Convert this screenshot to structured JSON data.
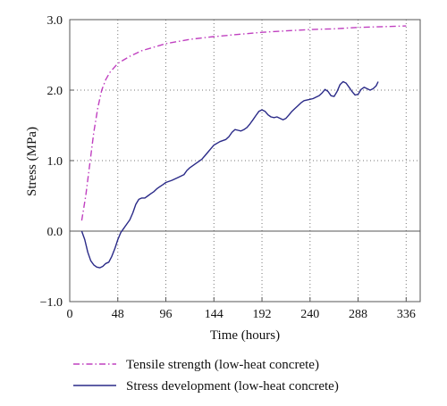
{
  "chart_data": {
    "type": "line",
    "xlabel": "Time (hours)",
    "ylabel": "Stress (MPa)",
    "xlim": [
      0,
      350
    ],
    "ylim": [
      -1.0,
      3.0
    ],
    "x_ticks": [
      0,
      48,
      96,
      144,
      192,
      240,
      288,
      336
    ],
    "x_tick_labels": [
      "0",
      "48",
      "96",
      "144",
      "192",
      "240",
      "288",
      "336"
    ],
    "y_ticks": [
      -1.0,
      0.0,
      1.0,
      2.0,
      3.0
    ],
    "y_tick_labels": [
      "−1.0",
      "0.0",
      "1.0",
      "2.0",
      "3.0"
    ],
    "grid": "dotted at ticks",
    "legend_position": "below chart",
    "series": [
      {
        "name": "Tensile strength (low-heat concrete)",
        "color": "#c040c0",
        "style": "dash-dot",
        "points": [
          [
            12,
            0.15
          ],
          [
            16,
            0.5
          ],
          [
            20,
            0.95
          ],
          [
            24,
            1.4
          ],
          [
            28,
            1.75
          ],
          [
            32,
            2.0
          ],
          [
            36,
            2.15
          ],
          [
            40,
            2.25
          ],
          [
            48,
            2.38
          ],
          [
            60,
            2.48
          ],
          [
            72,
            2.56
          ],
          [
            96,
            2.66
          ],
          [
            120,
            2.72
          ],
          [
            144,
            2.76
          ],
          [
            168,
            2.79
          ],
          [
            192,
            2.82
          ],
          [
            216,
            2.84
          ],
          [
            240,
            2.86
          ],
          [
            264,
            2.87
          ],
          [
            288,
            2.89
          ],
          [
            312,
            2.9
          ],
          [
            336,
            2.91
          ]
        ]
      },
      {
        "name": "Stress development (low-heat concrete)",
        "color": "#2a2a88",
        "style": "solid",
        "points": [
          [
            12,
            0.0
          ],
          [
            15,
            -0.12
          ],
          [
            18,
            -0.3
          ],
          [
            21,
            -0.42
          ],
          [
            24,
            -0.48
          ],
          [
            27,
            -0.51
          ],
          [
            30,
            -0.52
          ],
          [
            33,
            -0.5
          ],
          [
            36,
            -0.46
          ],
          [
            39,
            -0.44
          ],
          [
            42,
            -0.36
          ],
          [
            45,
            -0.25
          ],
          [
            48,
            -0.12
          ],
          [
            51,
            -0.02
          ],
          [
            54,
            0.04
          ],
          [
            57,
            0.1
          ],
          [
            60,
            0.16
          ],
          [
            63,
            0.26
          ],
          [
            66,
            0.38
          ],
          [
            69,
            0.45
          ],
          [
            72,
            0.47
          ],
          [
            75,
            0.47
          ],
          [
            78,
            0.5
          ],
          [
            81,
            0.53
          ],
          [
            84,
            0.56
          ],
          [
            87,
            0.6
          ],
          [
            90,
            0.63
          ],
          [
            93,
            0.66
          ],
          [
            96,
            0.69
          ],
          [
            102,
            0.72
          ],
          [
            108,
            0.76
          ],
          [
            114,
            0.8
          ],
          [
            117,
            0.86
          ],
          [
            120,
            0.9
          ],
          [
            126,
            0.96
          ],
          [
            129,
            0.99
          ],
          [
            132,
            1.02
          ],
          [
            135,
            1.07
          ],
          [
            138,
            1.12
          ],
          [
            141,
            1.17
          ],
          [
            144,
            1.22
          ],
          [
            150,
            1.27
          ],
          [
            156,
            1.3
          ],
          [
            159,
            1.34
          ],
          [
            162,
            1.4
          ],
          [
            165,
            1.44
          ],
          [
            168,
            1.43
          ],
          [
            171,
            1.42
          ],
          [
            174,
            1.44
          ],
          [
            177,
            1.47
          ],
          [
            180,
            1.52
          ],
          [
            183,
            1.58
          ],
          [
            186,
            1.64
          ],
          [
            189,
            1.7
          ],
          [
            192,
            1.72
          ],
          [
            195,
            1.7
          ],
          [
            198,
            1.65
          ],
          [
            201,
            1.62
          ],
          [
            204,
            1.61
          ],
          [
            207,
            1.62
          ],
          [
            210,
            1.6
          ],
          [
            213,
            1.58
          ],
          [
            216,
            1.6
          ],
          [
            219,
            1.65
          ],
          [
            222,
            1.7
          ],
          [
            225,
            1.74
          ],
          [
            228,
            1.78
          ],
          [
            231,
            1.82
          ],
          [
            234,
            1.85
          ],
          [
            237,
            1.86
          ],
          [
            240,
            1.87
          ],
          [
            243,
            1.88
          ],
          [
            246,
            1.9
          ],
          [
            249,
            1.92
          ],
          [
            252,
            1.96
          ],
          [
            255,
            2.01
          ],
          [
            258,
            1.98
          ],
          [
            261,
            1.92
          ],
          [
            264,
            1.91
          ],
          [
            267,
            1.98
          ],
          [
            270,
            2.08
          ],
          [
            273,
            2.12
          ],
          [
            276,
            2.1
          ],
          [
            279,
            2.04
          ],
          [
            282,
            1.98
          ],
          [
            285,
            1.93
          ],
          [
            288,
            1.94
          ],
          [
            291,
            2.01
          ],
          [
            294,
            2.04
          ],
          [
            297,
            2.02
          ],
          [
            300,
            2.0
          ],
          [
            303,
            2.02
          ],
          [
            306,
            2.06
          ],
          [
            308,
            2.12
          ]
        ]
      }
    ]
  }
}
